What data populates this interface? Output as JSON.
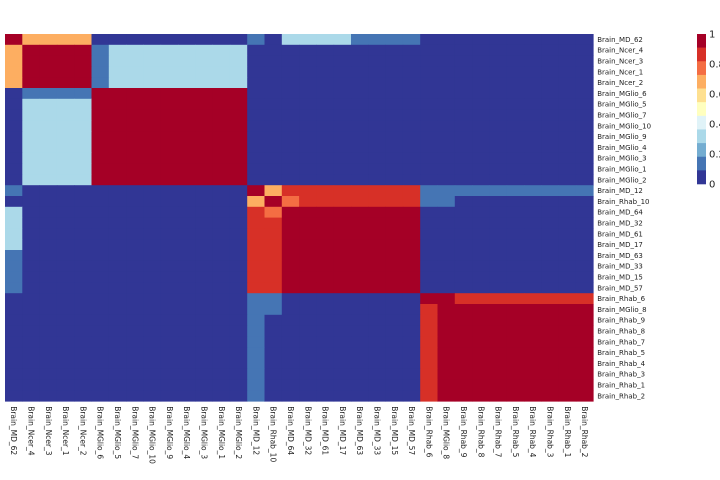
{
  "chart_data": {
    "type": "heatmap",
    "title": "",
    "xlabel": "",
    "ylabel": "",
    "rows": [
      "Brain_MD_62",
      "Brain_Ncer_4",
      "Brain_Ncer_3",
      "Brain_Ncer_1",
      "Brain_Ncer_2",
      "Brain_MGlio_6",
      "Brain_MGlio_5",
      "Brain_MGlio_7",
      "Brain_MGlio_10",
      "Brain_MGlio_9",
      "Brain_MGlio_4",
      "Brain_MGlio_3",
      "Brain_MGlio_1",
      "Brain_MGlio_2",
      "Brain_MD_12",
      "Brain_Rhab_10",
      "Brain_MD_64",
      "Brain_MD_32",
      "Brain_MD_61",
      "Brain_MD_17",
      "Brain_MD_63",
      "Brain_MD_33",
      "Brain_MD_15",
      "Brain_MD_57",
      "Brain_Rhab_6",
      "Brain_MGlio_8",
      "Brain_Rhab_9",
      "Brain_Rhab_8",
      "Brain_Rhab_7",
      "Brain_Rhab_5",
      "Brain_Rhab_4",
      "Brain_Rhab_3",
      "Brain_Rhab_1",
      "Brain_Rhab_2"
    ],
    "columns": [
      "Brain_MD_62",
      "Brain_Ncer_4",
      "Brain_Ncer_3",
      "Brain_Ncer_1",
      "Brain_Ncer_2",
      "Brain_MGlio_6",
      "Brain_MGlio_5",
      "Brain_MGlio_7",
      "Brain_MGlio_10",
      "Brain_MGlio_9",
      "Brain_MGlio_4",
      "Brain_MGlio_3",
      "Brain_MGlio_1",
      "Brain_MGlio_2",
      "Brain_MD_12",
      "Brain_Rhab_10",
      "Brain_MD_64",
      "Brain_MD_32",
      "Brain_MD_61",
      "Brain_MD_17",
      "Brain_MD_63",
      "Brain_MD_33",
      "Brain_MD_15",
      "Brain_MD_57",
      "Brain_Rhab_6",
      "Brain_MGlio_8",
      "Brain_Rhab_9",
      "Brain_Rhab_8",
      "Brain_Rhab_7",
      "Brain_Rhab_5",
      "Brain_Rhab_4",
      "Brain_Rhab_3",
      "Brain_Rhab_1",
      "Brain_Rhab_2"
    ],
    "values": [
      [
        1,
        0.7,
        0.7,
        0.7,
        0.7,
        0,
        0,
        0,
        0,
        0,
        0,
        0,
        0,
        0,
        0.1,
        0,
        0.3,
        0.3,
        0.3,
        0.3,
        0.1,
        0.1,
        0.1,
        0.1,
        0,
        0,
        0,
        0,
        0,
        0,
        0,
        0,
        0,
        0
      ],
      [
        0.7,
        1,
        1,
        1,
        1,
        0.1,
        0.3,
        0.3,
        0.3,
        0.3,
        0.3,
        0.3,
        0.3,
        0.3,
        0,
        0,
        0,
        0,
        0,
        0,
        0,
        0,
        0,
        0,
        0,
        0,
        0,
        0,
        0,
        0,
        0,
        0,
        0,
        0
      ],
      [
        0.7,
        1,
        1,
        1,
        1,
        0.1,
        0.3,
        0.3,
        0.3,
        0.3,
        0.3,
        0.3,
        0.3,
        0.3,
        0,
        0,
        0,
        0,
        0,
        0,
        0,
        0,
        0,
        0,
        0,
        0,
        0,
        0,
        0,
        0,
        0,
        0,
        0,
        0
      ],
      [
        0.7,
        1,
        1,
        1,
        1,
        0.1,
        0.3,
        0.3,
        0.3,
        0.3,
        0.3,
        0.3,
        0.3,
        0.3,
        0,
        0,
        0,
        0,
        0,
        0,
        0,
        0,
        0,
        0,
        0,
        0,
        0,
        0,
        0,
        0,
        0,
        0,
        0,
        0
      ],
      [
        0.7,
        1,
        1,
        1,
        1,
        0.1,
        0.3,
        0.3,
        0.3,
        0.3,
        0.3,
        0.3,
        0.3,
        0.3,
        0,
        0,
        0,
        0,
        0,
        0,
        0,
        0,
        0,
        0,
        0,
        0,
        0,
        0,
        0,
        0,
        0,
        0,
        0,
        0
      ],
      [
        0,
        0.1,
        0.1,
        0.1,
        0.1,
        1,
        1,
        1,
        1,
        1,
        1,
        1,
        1,
        1,
        0,
        0,
        0,
        0,
        0,
        0,
        0,
        0,
        0,
        0,
        0,
        0,
        0,
        0,
        0,
        0,
        0,
        0,
        0,
        0
      ],
      [
        0,
        0.3,
        0.3,
        0.3,
        0.3,
        1,
        1,
        1,
        1,
        1,
        1,
        1,
        1,
        1,
        0,
        0,
        0,
        0,
        0,
        0,
        0,
        0,
        0,
        0,
        0,
        0,
        0,
        0,
        0,
        0,
        0,
        0,
        0,
        0
      ],
      [
        0,
        0.3,
        0.3,
        0.3,
        0.3,
        1,
        1,
        1,
        1,
        1,
        1,
        1,
        1,
        1,
        0,
        0,
        0,
        0,
        0,
        0,
        0,
        0,
        0,
        0,
        0,
        0,
        0,
        0,
        0,
        0,
        0,
        0,
        0,
        0
      ],
      [
        0,
        0.3,
        0.3,
        0.3,
        0.3,
        1,
        1,
        1,
        1,
        1,
        1,
        1,
        1,
        1,
        0,
        0,
        0,
        0,
        0,
        0,
        0,
        0,
        0,
        0,
        0,
        0,
        0,
        0,
        0,
        0,
        0,
        0,
        0,
        0
      ],
      [
        0,
        0.3,
        0.3,
        0.3,
        0.3,
        1,
        1,
        1,
        1,
        1,
        1,
        1,
        1,
        1,
        0,
        0,
        0,
        0,
        0,
        0,
        0,
        0,
        0,
        0,
        0,
        0,
        0,
        0,
        0,
        0,
        0,
        0,
        0,
        0
      ],
      [
        0,
        0.3,
        0.3,
        0.3,
        0.3,
        1,
        1,
        1,
        1,
        1,
        1,
        1,
        1,
        1,
        0,
        0,
        0,
        0,
        0,
        0,
        0,
        0,
        0,
        0,
        0,
        0,
        0,
        0,
        0,
        0,
        0,
        0,
        0,
        0
      ],
      [
        0,
        0.3,
        0.3,
        0.3,
        0.3,
        1,
        1,
        1,
        1,
        1,
        1,
        1,
        1,
        1,
        0,
        0,
        0,
        0,
        0,
        0,
        0,
        0,
        0,
        0,
        0,
        0,
        0,
        0,
        0,
        0,
        0,
        0,
        0,
        0
      ],
      [
        0,
        0.3,
        0.3,
        0.3,
        0.3,
        1,
        1,
        1,
        1,
        1,
        1,
        1,
        1,
        1,
        0,
        0,
        0,
        0,
        0,
        0,
        0,
        0,
        0,
        0,
        0,
        0,
        0,
        0,
        0,
        0,
        0,
        0,
        0,
        0
      ],
      [
        0,
        0.3,
        0.3,
        0.3,
        0.3,
        1,
        1,
        1,
        1,
        1,
        1,
        1,
        1,
        1,
        0,
        0,
        0,
        0,
        0,
        0,
        0,
        0,
        0,
        0,
        0,
        0,
        0,
        0,
        0,
        0,
        0,
        0,
        0,
        0
      ],
      [
        0.1,
        0,
        0,
        0,
        0,
        0,
        0,
        0,
        0,
        0,
        0,
        0,
        0,
        0,
        1,
        0.7,
        0.9,
        0.9,
        0.9,
        0.9,
        0.9,
        0.9,
        0.9,
        0.9,
        0.1,
        0.1,
        0.1,
        0.1,
        0.1,
        0.1,
        0.1,
        0.1,
        0.1,
        0.1
      ],
      [
        0,
        0,
        0,
        0,
        0,
        0,
        0,
        0,
        0,
        0,
        0,
        0,
        0,
        0,
        0.7,
        1,
        0.8,
        0.9,
        0.9,
        0.9,
        0.9,
        0.9,
        0.9,
        0.9,
        0.1,
        0.1,
        0,
        0,
        0,
        0,
        0,
        0,
        0,
        0
      ],
      [
        0.3,
        0,
        0,
        0,
        0,
        0,
        0,
        0,
        0,
        0,
        0,
        0,
        0,
        0,
        0.9,
        0.8,
        1,
        1,
        1,
        1,
        1,
        1,
        1,
        1,
        0,
        0,
        0,
        0,
        0,
        0,
        0,
        0,
        0,
        0
      ],
      [
        0.3,
        0,
        0,
        0,
        0,
        0,
        0,
        0,
        0,
        0,
        0,
        0,
        0,
        0,
        0.9,
        0.9,
        1,
        1,
        1,
        1,
        1,
        1,
        1,
        1,
        0,
        0,
        0,
        0,
        0,
        0,
        0,
        0,
        0,
        0
      ],
      [
        0.3,
        0,
        0,
        0,
        0,
        0,
        0,
        0,
        0,
        0,
        0,
        0,
        0,
        0,
        0.9,
        0.9,
        1,
        1,
        1,
        1,
        1,
        1,
        1,
        1,
        0,
        0,
        0,
        0,
        0,
        0,
        0,
        0,
        0,
        0
      ],
      [
        0.3,
        0,
        0,
        0,
        0,
        0,
        0,
        0,
        0,
        0,
        0,
        0,
        0,
        0,
        0.9,
        0.9,
        1,
        1,
        1,
        1,
        1,
        1,
        1,
        1,
        0,
        0,
        0,
        0,
        0,
        0,
        0,
        0,
        0,
        0
      ],
      [
        0.1,
        0,
        0,
        0,
        0,
        0,
        0,
        0,
        0,
        0,
        0,
        0,
        0,
        0,
        0.9,
        0.9,
        1,
        1,
        1,
        1,
        1,
        1,
        1,
        1,
        0,
        0,
        0,
        0,
        0,
        0,
        0,
        0,
        0,
        0
      ],
      [
        0.1,
        0,
        0,
        0,
        0,
        0,
        0,
        0,
        0,
        0,
        0,
        0,
        0,
        0,
        0.9,
        0.9,
        1,
        1,
        1,
        1,
        1,
        1,
        1,
        1,
        0,
        0,
        0,
        0,
        0,
        0,
        0,
        0,
        0,
        0
      ],
      [
        0.1,
        0,
        0,
        0,
        0,
        0,
        0,
        0,
        0,
        0,
        0,
        0,
        0,
        0,
        0.9,
        0.9,
        1,
        1,
        1,
        1,
        1,
        1,
        1,
        1,
        0,
        0,
        0,
        0,
        0,
        0,
        0,
        0,
        0,
        0
      ],
      [
        0.1,
        0,
        0,
        0,
        0,
        0,
        0,
        0,
        0,
        0,
        0,
        0,
        0,
        0,
        0.9,
        0.9,
        1,
        1,
        1,
        1,
        1,
        1,
        1,
        1,
        0,
        0,
        0,
        0,
        0,
        0,
        0,
        0,
        0,
        0
      ],
      [
        0,
        0,
        0,
        0,
        0,
        0,
        0,
        0,
        0,
        0,
        0,
        0,
        0,
        0,
        0.1,
        0.1,
        0,
        0,
        0,
        0,
        0,
        0,
        0,
        0,
        1,
        1,
        0.9,
        0.9,
        0.9,
        0.9,
        0.9,
        0.9,
        0.9,
        0.9
      ],
      [
        0,
        0,
        0,
        0,
        0,
        0,
        0,
        0,
        0,
        0,
        0,
        0,
        0,
        0,
        0.1,
        0.1,
        0,
        0,
        0,
        0,
        0,
        0,
        0,
        0,
        0.9,
        1,
        1,
        1,
        1,
        1,
        1,
        1,
        1,
        1
      ],
      [
        0,
        0,
        0,
        0,
        0,
        0,
        0,
        0,
        0,
        0,
        0,
        0,
        0,
        0,
        0.1,
        0,
        0,
        0,
        0,
        0,
        0,
        0,
        0,
        0,
        0.9,
        1,
        1,
        1,
        1,
        1,
        1,
        1,
        1,
        1
      ],
      [
        0,
        0,
        0,
        0,
        0,
        0,
        0,
        0,
        0,
        0,
        0,
        0,
        0,
        0,
        0.1,
        0,
        0,
        0,
        0,
        0,
        0,
        0,
        0,
        0,
        0.9,
        1,
        1,
        1,
        1,
        1,
        1,
        1,
        1,
        1
      ],
      [
        0,
        0,
        0,
        0,
        0,
        0,
        0,
        0,
        0,
        0,
        0,
        0,
        0,
        0,
        0.1,
        0,
        0,
        0,
        0,
        0,
        0,
        0,
        0,
        0,
        0.9,
        1,
        1,
        1,
        1,
        1,
        1,
        1,
        1,
        1
      ],
      [
        0,
        0,
        0,
        0,
        0,
        0,
        0,
        0,
        0,
        0,
        0,
        0,
        0,
        0,
        0.1,
        0,
        0,
        0,
        0,
        0,
        0,
        0,
        0,
        0,
        0.9,
        1,
        1,
        1,
        1,
        1,
        1,
        1,
        1,
        1
      ],
      [
        0,
        0,
        0,
        0,
        0,
        0,
        0,
        0,
        0,
        0,
        0,
        0,
        0,
        0,
        0.1,
        0,
        0,
        0,
        0,
        0,
        0,
        0,
        0,
        0,
        0.9,
        1,
        1,
        1,
        1,
        1,
        1,
        1,
        1,
        1
      ],
      [
        0,
        0,
        0,
        0,
        0,
        0,
        0,
        0,
        0,
        0,
        0,
        0,
        0,
        0,
        0.1,
        0,
        0,
        0,
        0,
        0,
        0,
        0,
        0,
        0,
        0.9,
        1,
        1,
        1,
        1,
        1,
        1,
        1,
        1,
        1
      ],
      [
        0,
        0,
        0,
        0,
        0,
        0,
        0,
        0,
        0,
        0,
        0,
        0,
        0,
        0,
        0.1,
        0,
        0,
        0,
        0,
        0,
        0,
        0,
        0,
        0,
        0.9,
        1,
        1,
        1,
        1,
        1,
        1,
        1,
        1,
        1
      ],
      [
        0,
        0,
        0,
        0,
        0,
        0,
        0,
        0,
        0,
        0,
        0,
        0,
        0,
        0,
        0.1,
        0,
        0,
        0,
        0,
        0,
        0,
        0,
        0,
        0,
        0.9,
        1,
        1,
        1,
        1,
        1,
        1,
        1,
        1,
        1
      ]
    ],
    "color_scale": {
      "range": [
        0,
        1
      ],
      "ticks": [
        0,
        0.2,
        0.4,
        0.6,
        0.8,
        1
      ],
      "colors": [
        "#313695",
        "#4575b4",
        "#74add1",
        "#abd9e9",
        "#e0f3f8",
        "#ffffbf",
        "#fee090",
        "#fdae61",
        "#f46d43",
        "#d73027",
        "#a50026"
      ]
    },
    "legend": "right"
  }
}
